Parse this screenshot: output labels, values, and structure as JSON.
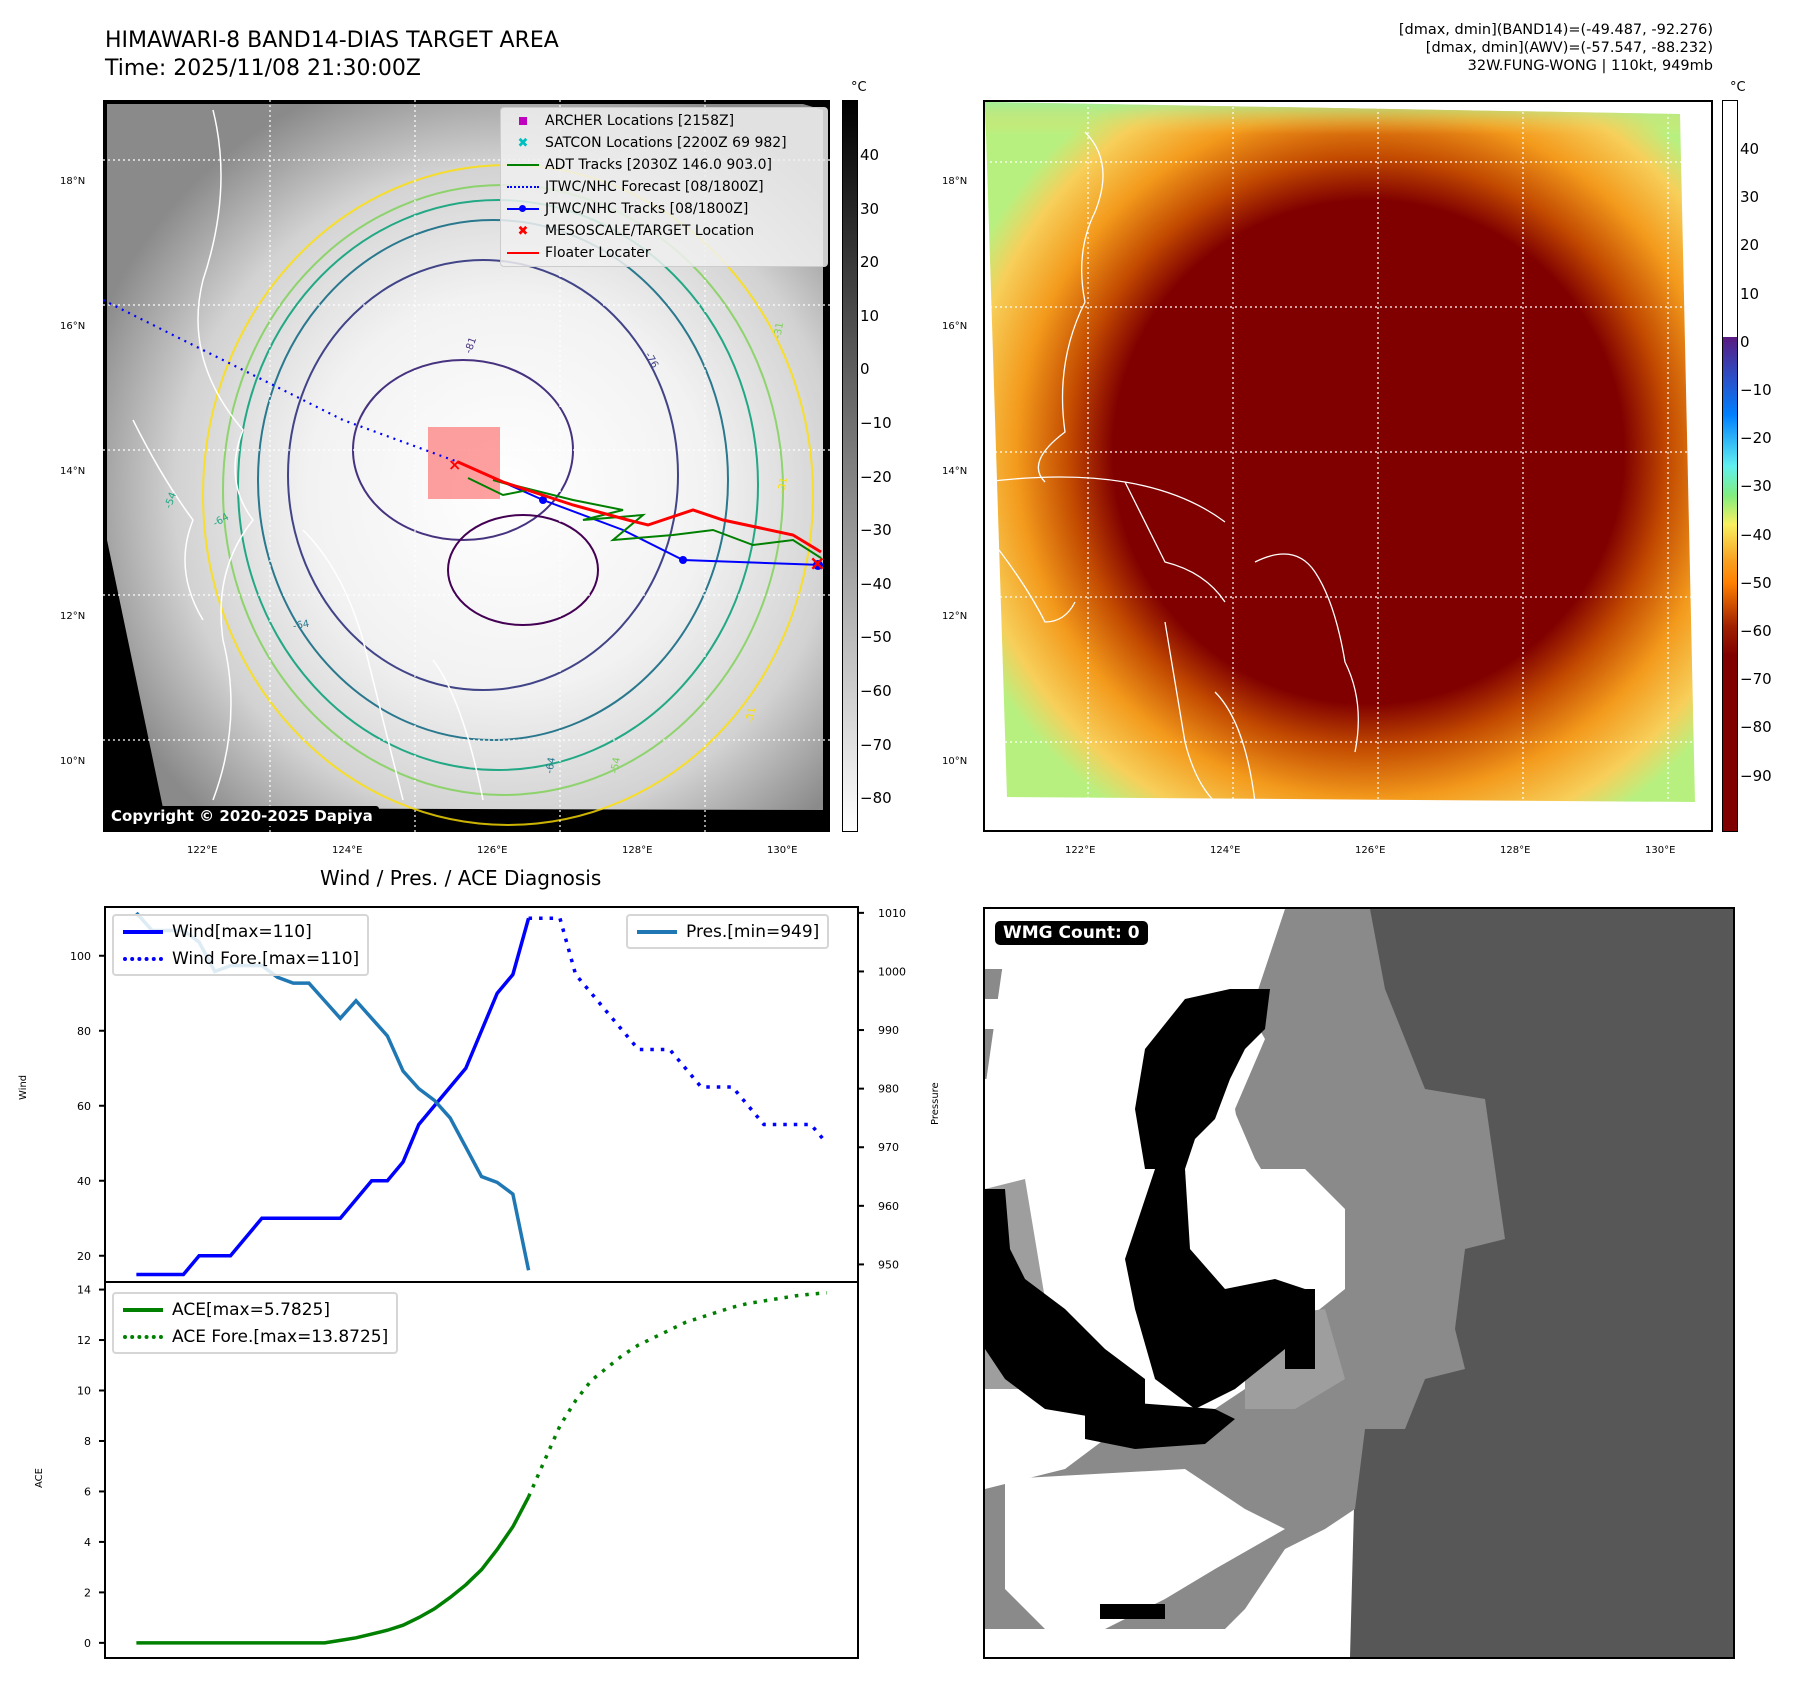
{
  "header": {
    "title_line1": "HIMAWARI-8 BAND14-DIAS TARGET AREA",
    "title_line2": "Time: 2025/11/08 21:30:00Z",
    "right_line1": "[dmax, dmin](BAND14)=(-49.487, -92.276)",
    "right_line2": "[dmax, dmin](AWV)=(-57.547, -88.232)",
    "right_line3": "32W.FUNG-WONG | 110kt, 949mb"
  },
  "ir_map": {
    "lat_labels": [
      "18°N",
      "16°N",
      "14°N",
      "12°N",
      "10°N"
    ],
    "lon_labels": [
      "122°E",
      "124°E",
      "126°E",
      "128°E",
      "130°E"
    ],
    "contour_labels": [
      "-81",
      "-76",
      "-31",
      "-31",
      "-54",
      "-64",
      "-64",
      "-54",
      "-64",
      "-31"
    ],
    "copyright": "Copyright © 2020-2025 Dapiya",
    "legend": [
      {
        "label": "ARCHER Locations [2158Z]",
        "symbol": "square",
        "color": "#bf00bf"
      },
      {
        "label": "SATCON Locations [2200Z 69 982]",
        "symbol": "x",
        "color": "#00bfbf"
      },
      {
        "label": "ADT Tracks [2030Z 146.0 903.0]",
        "symbol": "line",
        "color": "#008000"
      },
      {
        "label": "JTWC/NHC Forecast [08/1800Z]",
        "symbol": "dotted",
        "color": "#0000ff"
      },
      {
        "label": "JTWC/NHC Tracks [08/1800Z]",
        "symbol": "line-dot",
        "color": "#0000ff"
      },
      {
        "label": "MESOSCALE/TARGET Location",
        "symbol": "x",
        "color": "#ff0000"
      },
      {
        "label": "Floater Locater",
        "symbol": "line",
        "color": "#ff0000"
      }
    ],
    "colorbar": {
      "unit": "°C",
      "ticks": [
        "40",
        "30",
        "20",
        "10",
        "0",
        "−10",
        "−20",
        "−30",
        "−40",
        "−50",
        "−60",
        "−70",
        "−80"
      ]
    }
  },
  "awv_map": {
    "lat_labels": [
      "18°N",
      "16°N",
      "14°N",
      "12°N",
      "10°N"
    ],
    "lon_labels": [
      "122°E",
      "124°E",
      "126°E",
      "128°E",
      "130°E"
    ],
    "colorbar": {
      "unit": "°C",
      "ticks": [
        "40",
        "30",
        "20",
        "10",
        "0",
        "−10",
        "−20",
        "−30",
        "−40",
        "−50",
        "−60",
        "−70",
        "−80",
        "−90"
      ]
    }
  },
  "wmg": {
    "label": "WMG Count: 0"
  },
  "chart_data": [
    {
      "type": "line",
      "title": "Wind / Pres. / ACE Diagnosis",
      "ylabel": "Wind",
      "ylabel_right": "Pressure",
      "ylim": [
        13,
        113
      ],
      "ylim_right": [
        947,
        1011
      ],
      "yticks": [
        20,
        40,
        60,
        80,
        100
      ],
      "yticks_right": [
        950,
        960,
        970,
        980,
        990,
        1000,
        1010
      ],
      "x": [
        0,
        1,
        2,
        3,
        4,
        5,
        6,
        7,
        8,
        9,
        10,
        11,
        12,
        13,
        14,
        15,
        16,
        17,
        18,
        19,
        20,
        21,
        22,
        23,
        24,
        25
      ],
      "series": [
        {
          "name": "Wind[max=110]",
          "style": "solid",
          "color": "#0000ff",
          "axis": "left",
          "x": [
            0,
            1,
            2,
            3,
            4,
            5,
            6,
            7,
            8,
            9,
            10,
            11,
            12,
            13,
            14,
            15,
            16,
            17,
            18,
            19,
            20,
            21,
            22,
            23,
            24,
            25
          ],
          "values": [
            15,
            15,
            15,
            15,
            20,
            20,
            20,
            25,
            30,
            30,
            30,
            30,
            30,
            30,
            35,
            40,
            40,
            45,
            55,
            60,
            65,
            70,
            80,
            90,
            95,
            110
          ]
        },
        {
          "name": "Wind Fore.[max=110]",
          "style": "dotted",
          "color": "#0000ff",
          "axis": "left",
          "x": [
            25,
            26,
            27,
            28,
            29,
            30,
            31,
            32,
            33,
            34,
            35,
            36,
            37,
            38,
            39,
            40,
            41,
            42,
            43,
            44
          ],
          "values": [
            110,
            110,
            110,
            95,
            90,
            85,
            80,
            75,
            75,
            75,
            70,
            65,
            65,
            65,
            60,
            55,
            55,
            55,
            55,
            50
          ]
        },
        {
          "name": "Pres.[min=949]",
          "style": "solid",
          "color": "#1f77b4",
          "axis": "right",
          "x": [
            0,
            1,
            2,
            3,
            4,
            5,
            6,
            7,
            8,
            9,
            10,
            11,
            12,
            13,
            14,
            15,
            16,
            17,
            18,
            19,
            20,
            21,
            22,
            23,
            24,
            25
          ],
          "values": [
            1010,
            1007,
            1007,
            1007,
            1005,
            1000,
            1001,
            1001,
            1001,
            999,
            998,
            998,
            995,
            992,
            995,
            992,
            989,
            983,
            980,
            978,
            975,
            970,
            965,
            964,
            962,
            949
          ]
        }
      ],
      "xlim": [
        -2,
        46
      ]
    },
    {
      "type": "line",
      "ylabel": "ACE",
      "ylim": [
        -0.6,
        14.3
      ],
      "yticks": [
        0,
        2,
        4,
        6,
        8,
        10,
        12,
        14
      ],
      "xlim": [
        -2,
        46
      ],
      "series": [
        {
          "name": "ACE[max=5.7825]",
          "style": "solid",
          "color": "#008000",
          "x": [
            0,
            1,
            2,
            3,
            4,
            5,
            6,
            7,
            8,
            9,
            10,
            11,
            12,
            13,
            14,
            15,
            16,
            17,
            18,
            19,
            20,
            21,
            22,
            23,
            24,
            25
          ],
          "values": [
            0,
            0,
            0,
            0,
            0,
            0,
            0,
            0,
            0,
            0,
            0,
            0,
            0,
            0.1,
            0.2,
            0.35,
            0.5,
            0.7,
            1.0,
            1.35,
            1.8,
            2.3,
            2.9,
            3.7,
            4.6,
            5.7825
          ]
        },
        {
          "name": "ACE Fore.[max=13.8725]",
          "style": "dotted",
          "color": "#008000",
          "x": [
            25,
            26,
            27,
            28,
            29,
            30,
            31,
            32,
            33,
            34,
            35,
            36,
            37,
            38,
            39,
            40,
            41,
            42,
            43,
            44
          ],
          "values": [
            5.7825,
            7.2,
            8.6,
            9.6,
            10.4,
            10.9,
            11.4,
            11.8,
            12.1,
            12.4,
            12.7,
            12.9,
            13.1,
            13.3,
            13.45,
            13.55,
            13.65,
            13.75,
            13.82,
            13.8725
          ]
        }
      ]
    }
  ]
}
